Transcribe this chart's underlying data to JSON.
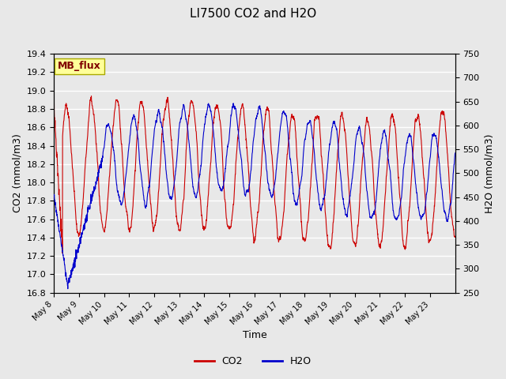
{
  "title": "LI7500 CO2 and H2O",
  "xlabel": "Time",
  "ylabel_left": "CO2 (mmol/m3)",
  "ylabel_right": "H2O (mmol/m3)",
  "ylim_left": [
    16.8,
    19.4
  ],
  "ylim_right": [
    250,
    750
  ],
  "yticks_left": [
    16.8,
    17.0,
    17.2,
    17.4,
    17.6,
    17.8,
    18.0,
    18.2,
    18.4,
    18.6,
    18.8,
    19.0,
    19.2,
    19.4
  ],
  "yticks_right": [
    250,
    300,
    350,
    400,
    450,
    500,
    550,
    600,
    650,
    700,
    750
  ],
  "co2_color": "#cc0000",
  "h2o_color": "#0000cc",
  "background_color": "#e8e8e8",
  "plot_bg_color": "#e8e8e8",
  "grid_color": "#ffffff",
  "label_box_color": "#ffff99",
  "label_box_edge": "#aaaa00",
  "label_text": "MB_flux",
  "label_text_color": "#800000",
  "xtick_labels": [
    "May 8",
    "May 9",
    "May 10",
    "May 11",
    "May 12",
    "May 13",
    "May 14",
    "May 15",
    "May 16",
    "May 17",
    "May 18",
    "May 19",
    "May 20",
    "May 21",
    "May 22",
    "May 23"
  ],
  "n_days": 16
}
